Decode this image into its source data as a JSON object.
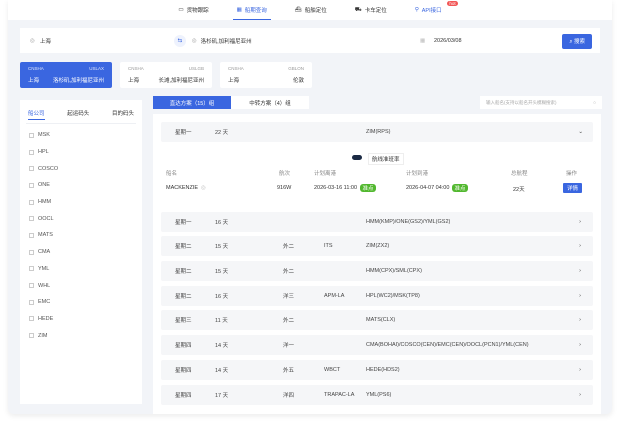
{
  "nav": [
    {
      "label": "货物跟踪",
      "icon": "truck-box-icon"
    },
    {
      "label": "船期查询",
      "icon": "calendar-icon",
      "active": true
    },
    {
      "label": "船舶定位",
      "icon": "ship-icon"
    },
    {
      "label": "卡车定位",
      "icon": "truck-icon"
    },
    {
      "label": "API接口",
      "icon": "link-icon",
      "badge": "hot"
    }
  ],
  "search": {
    "origin": "上海",
    "destination": "洛杉矶,加利福尼亚州",
    "date": "2026/03/08",
    "button": "搜索"
  },
  "routes": [
    {
      "from_code": "CNSHA",
      "to_code": "USLAX",
      "from": "上海",
      "to": "洛杉矶,加利福尼亚州",
      "active": true
    },
    {
      "from_code": "CNSHA",
      "to_code": "USLGB",
      "from": "上海",
      "to": "长滩,加利福尼亚州"
    },
    {
      "from_code": "CNSHA",
      "to_code": "GBLON",
      "from": "上海",
      "to": "伦敦"
    }
  ],
  "filter": {
    "tabs": [
      "船公司",
      "起运码头",
      "目的码头"
    ],
    "carriers": [
      "MSK",
      "HPL",
      "COSCO",
      "ONE",
      "HMM",
      "OOCL",
      "MATS",
      "CMA",
      "YML",
      "WHL",
      "EMC",
      "HEDE",
      "ZIM"
    ]
  },
  "plan_tabs": [
    "直达方案（15）组",
    "中转方案（4）组"
  ],
  "vessel_search": {
    "placeholder": "输入船名(支持以船名开头模糊搜索)"
  },
  "expanded": {
    "day": "星期一",
    "days": "22 天",
    "service": "ZIM(RPS)",
    "toggle_label": "航线准班率",
    "headers": [
      "船名",
      "航次",
      "计划离港",
      "计划到港",
      "总航程",
      "操作"
    ],
    "vessel": "MACKENZIE",
    "voyage": "916W",
    "etd": "2026-03-16 11:00",
    "etd_status": "准点",
    "eta": "2026-04-07 04:00",
    "eta_status": "准点",
    "total": "22天",
    "action": "详情"
  },
  "rows": [
    {
      "day": "星期一",
      "days": "16 天",
      "terminal": "",
      "pier": "",
      "service": "HMM(KMP)/ONE(GS2)/YML(GS2)"
    },
    {
      "day": "星期二",
      "days": "15 天",
      "terminal": "外二",
      "pier": "ITS",
      "service": "ZIM(ZX2)"
    },
    {
      "day": "星期二",
      "days": "15 天",
      "terminal": "外二",
      "pier": "",
      "service": "HMM(CPX)/SML(CPX)"
    },
    {
      "day": "星期二",
      "days": "16 天",
      "terminal": "洋三",
      "pier": "APM-LA",
      "service": "HPL(WC2)/MSK(TP8)"
    },
    {
      "day": "星期三",
      "days": "11 天",
      "terminal": "外二",
      "pier": "",
      "service": "MATS(CLX)"
    },
    {
      "day": "星期四",
      "days": "14 天",
      "terminal": "洋一",
      "pier": "",
      "service": "CMA(BOHAI)/COSCO(CEN)/EMC(CEN)/OOCL(PCN1)/YML(CEN)"
    },
    {
      "day": "星期四",
      "days": "14 天",
      "terminal": "外五",
      "pier": "WBCT",
      "service": "HEDE(HDS2)"
    },
    {
      "day": "星期四",
      "days": "17 天",
      "terminal": "洋四",
      "pier": "TRAPAC-LA",
      "service": "YML(PS6)"
    }
  ],
  "colors": {
    "accent": "#3a66e0",
    "ontime": "#52b82f",
    "hot": "#f25555"
  }
}
